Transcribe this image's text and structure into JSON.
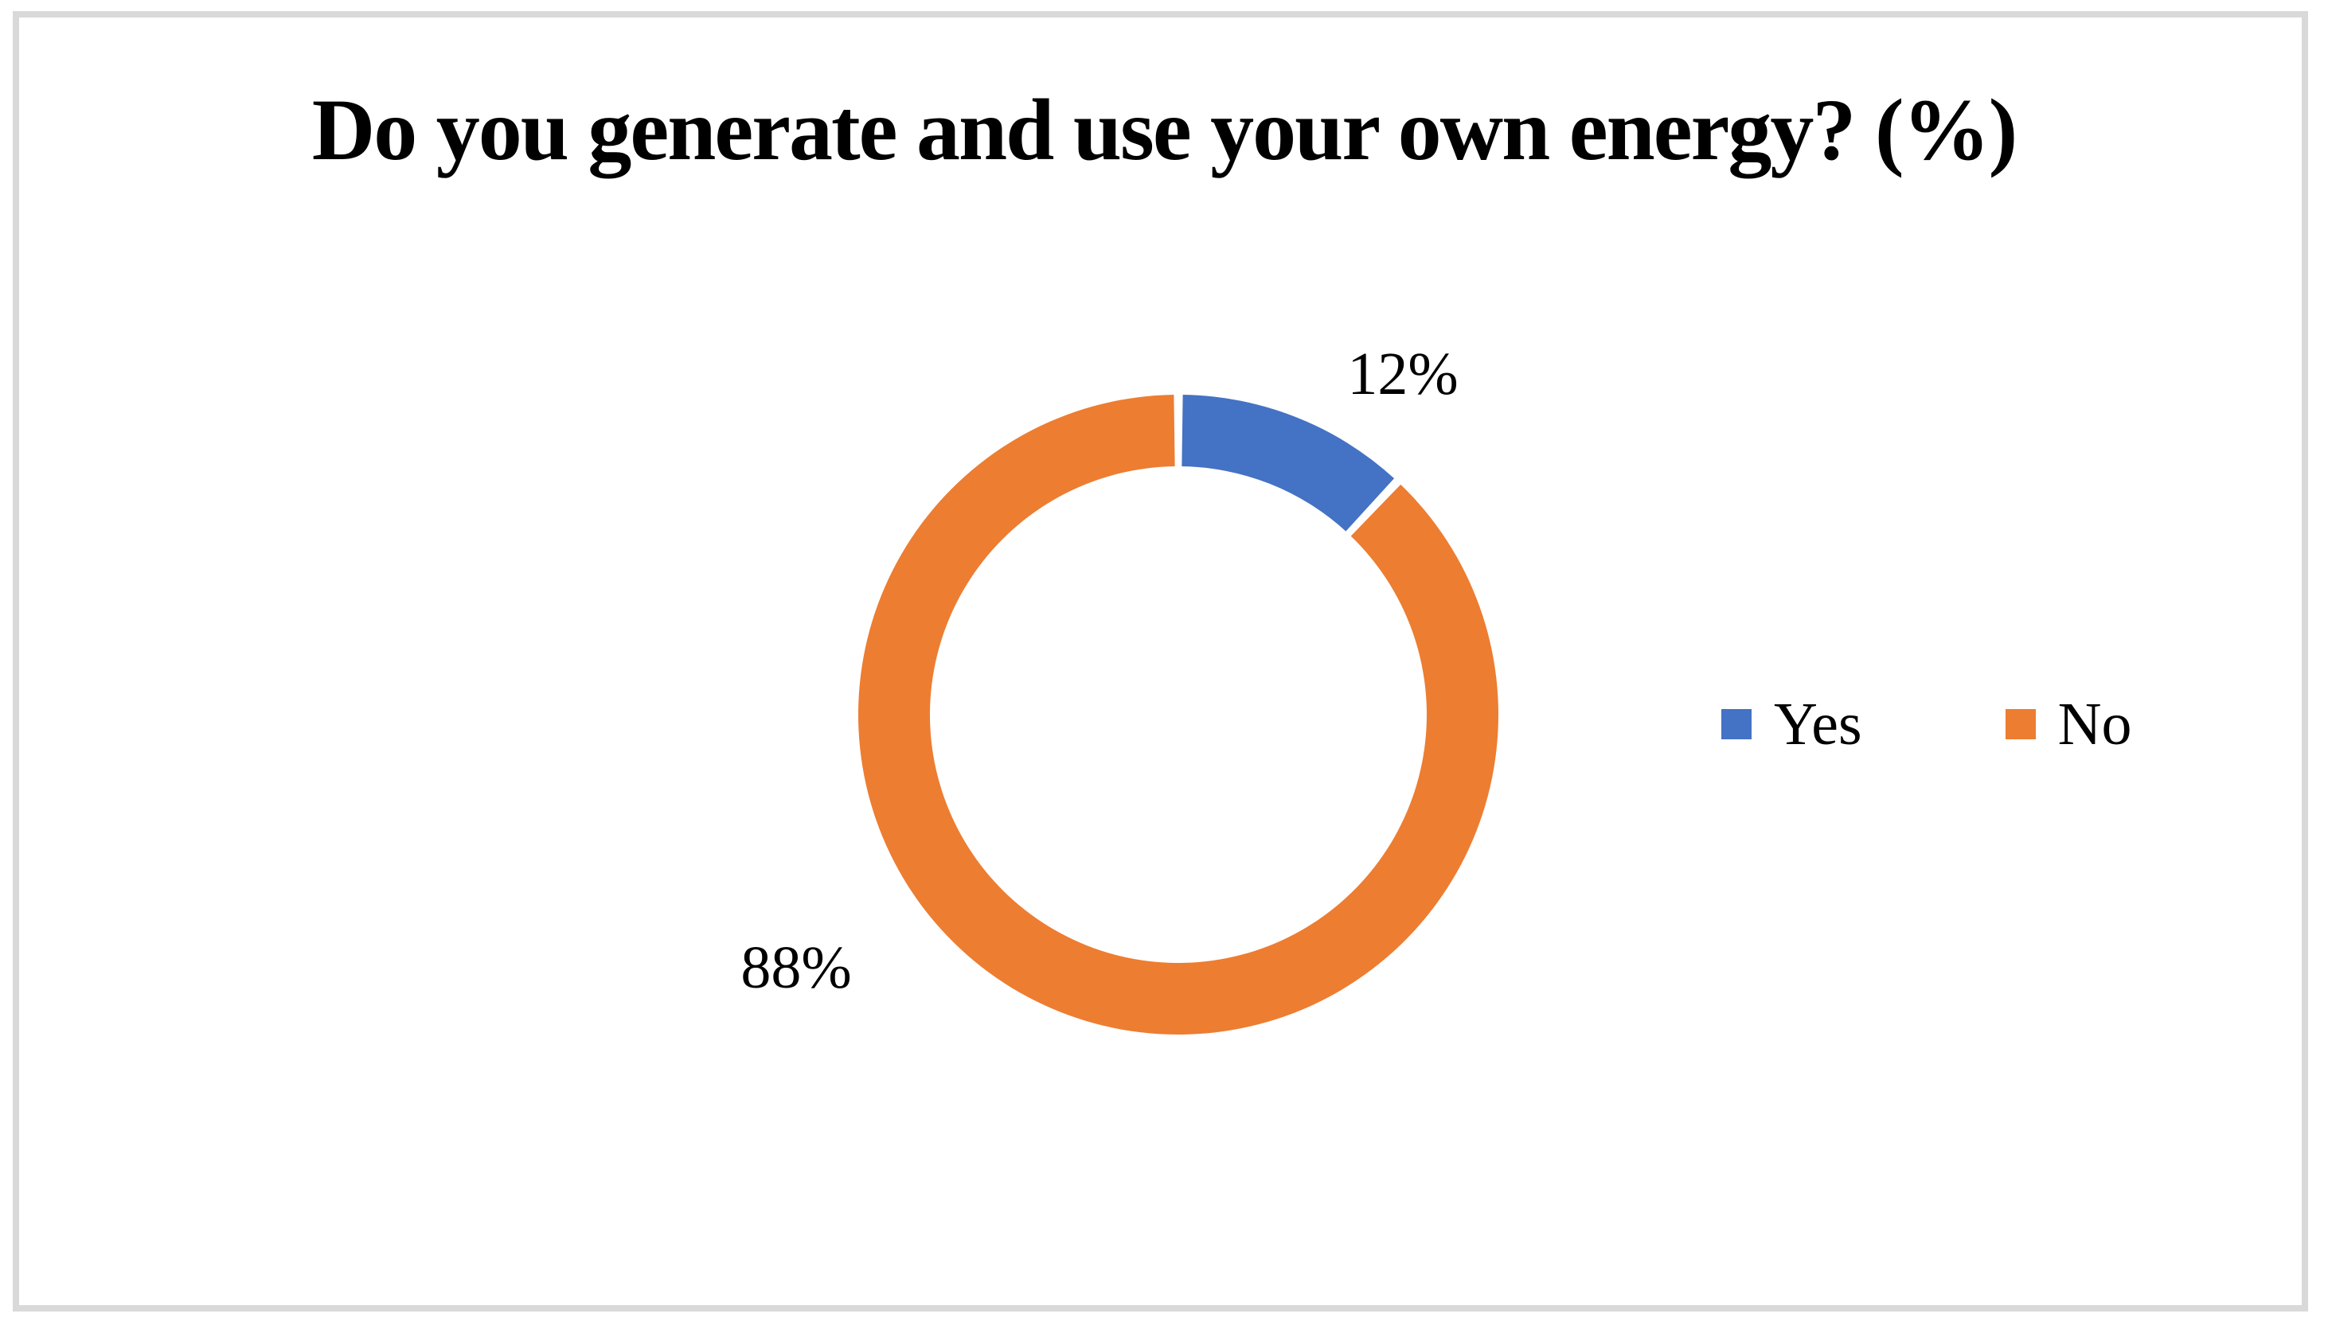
{
  "page": {
    "background_color": "#FFFFFF",
    "frame_border_color": "#D9D9D9"
  },
  "chart_data": {
    "type": "pie",
    "subtype": "donut",
    "title": "Do you generate and use your own energy? (%)",
    "categories": [
      "Yes",
      "No"
    ],
    "values": [
      12,
      88
    ],
    "unit": "%",
    "colors": [
      "#4472C4",
      "#ED7D31"
    ],
    "data_labels": [
      "12%",
      "88%"
    ],
    "data_label_position": "outside",
    "legend_position": "right",
    "start_angle_deg": 0,
    "direction": "clockwise",
    "donut_hole_ratio": 0.776,
    "slice_gap_deg": 1.6,
    "grid": false
  }
}
